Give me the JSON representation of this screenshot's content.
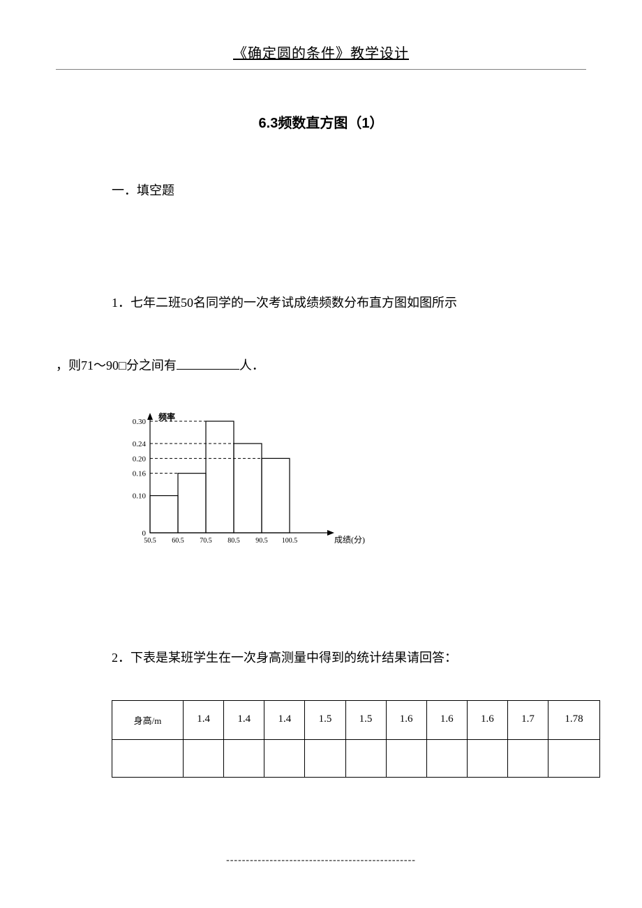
{
  "header": {
    "title": "《确定圆的条件》教学设计"
  },
  "section": {
    "title": "6.3频数直方图（1）",
    "heading": "一．填空题"
  },
  "question1": {
    "line1": "1．七年二班50名同学的一次考试成绩频数分布直方图如图所示",
    "line2_prefix": "，则71～90□分之间有",
    "line2_suffix": "人．"
  },
  "chart": {
    "y_label": "频率",
    "x_label": "成绩(分)",
    "y_ticks": [
      "0",
      "0.10",
      "0.16",
      "0.20",
      "0.24",
      "0.30"
    ],
    "y_values": [
      0,
      0.1,
      0.16,
      0.2,
      0.24,
      0.3
    ],
    "x_ticks": [
      "50.5",
      "60.5",
      "70.5",
      "80.5",
      "90.5",
      "100.5"
    ],
    "bars": [
      0.1,
      0.16,
      0.3,
      0.24,
      0.2
    ],
    "axis_color": "#000000",
    "bar_border_color": "#000000",
    "bar_fill": "none",
    "dash_color": "#000000"
  },
  "question2": {
    "text": "2．下表是某班学生在一次身高测量中得到的统计结果请回答："
  },
  "table": {
    "row_header": "身高/m",
    "values": [
      "1.4",
      "1.4",
      "1.4",
      "1.5",
      "1.5",
      "1.6",
      "1.6",
      "1.6",
      "1.7",
      "1.78"
    ]
  },
  "footer": {
    "dashes": "------------------------------------------------"
  }
}
